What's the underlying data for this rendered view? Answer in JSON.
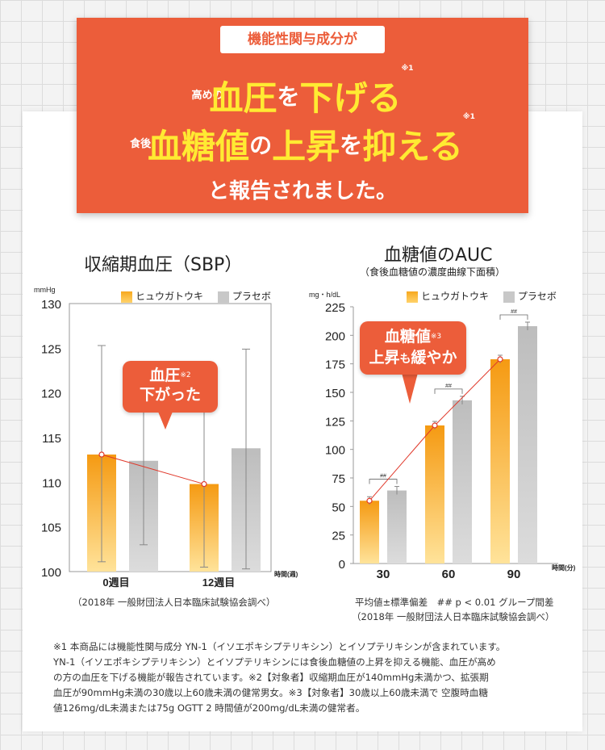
{
  "banner": {
    "pill": "機能性関与成分が",
    "line1_pre": "高めの",
    "line1_big1": "血圧",
    "line1_mid": "を",
    "line1_big2": "下げる",
    "line1_sup": "※1",
    "line2_pre": "食後",
    "line2_big1": "血糖値",
    "line2_mid1": "の",
    "line2_big2": "上昇",
    "line2_mid2": "を",
    "line2_big3": "抑える",
    "line2_sup": "※1",
    "line3": "と報告されました。"
  },
  "legend": {
    "series1": "ヒュウガトウキ",
    "series2": "プラセボ"
  },
  "colors": {
    "accent": "#ec5d3a",
    "highlight": "#ffea32",
    "orange_bar": "#f7a81f",
    "gray_bar": "#c8c8c8"
  },
  "chart_data": [
    {
      "type": "bar",
      "title": "収縮期血圧（SBP）",
      "ylabel": "mmHg",
      "xlabel": "時間(週)",
      "ylim": [
        100,
        130
      ],
      "yticks": [
        "130",
        "125",
        "120",
        "115",
        "110",
        "105",
        "100"
      ],
      "categories": [
        "0週目",
        "12週目"
      ],
      "series": [
        {
          "name": "ヒュウガトウキ",
          "values": [
            113.1,
            109.8
          ],
          "err_low": [
            101.1,
            100.5
          ],
          "err_high": [
            125.3,
            119.2
          ]
        },
        {
          "name": "プラセボ",
          "values": [
            112.4,
            113.8
          ],
          "err_low": [
            103.0,
            100.3
          ],
          "err_high": [
            123.0,
            124.9
          ]
        }
      ],
      "callout": {
        "line1": "血圧",
        "sup": "※2",
        "line2": "下がった"
      },
      "note": "（2018年 一般財団法人日本臨床試験協会調べ）"
    },
    {
      "type": "bar",
      "title": "血糖値のAUC",
      "subtitle": "（食後血糖値の濃度曲線下面積）",
      "ylabel": "mg・h/dL",
      "xlabel": "時間(分)",
      "ylim": [
        0,
        225
      ],
      "yticks": [
        "225",
        "200",
        "175",
        "150",
        "125",
        "100",
        "75",
        "50",
        "25",
        "0"
      ],
      "categories": [
        "30",
        "60",
        "90"
      ],
      "series": [
        {
          "name": "ヒュウガトウキ",
          "values": [
            55,
            121,
            179
          ]
        },
        {
          "name": "プラセボ",
          "values": [
            64,
            143,
            208
          ]
        }
      ],
      "significance": [
        "##",
        "##",
        "##"
      ],
      "callout": {
        "line1": "血糖値",
        "sup": "※3",
        "line2a": "上昇",
        "line2b": "も",
        "line2c": "緩やか"
      },
      "note1": "平均値±標準偏差　## p < 0.01 グループ間差",
      "note2": "（2018年 一般財団法人日本臨床試験協会調べ）"
    }
  ],
  "footnotes": [
    "※1 本商品には機能性関与成分 YN-1（イソエポキシプテリキシン）とイソプテリキシンが含まれています。",
    "YN-1（イソエポキシプテリキシン）とイソプテリキシンには食後血糖値の上昇を抑える機能、血圧が高め",
    "の方の血圧を下げる機能が報告されています。※2【対象者】収縮期血圧が140mmHg未満かつ、拡張期",
    "血圧が90mmHg未満の30歳以上60歳未満の健常男女。※3【対象者】30歳以上60歳未満で 空腹時血糖",
    "値126mg/dL未満または75g OGTT 2 時間値が200mg/dL未満の健常者。"
  ]
}
